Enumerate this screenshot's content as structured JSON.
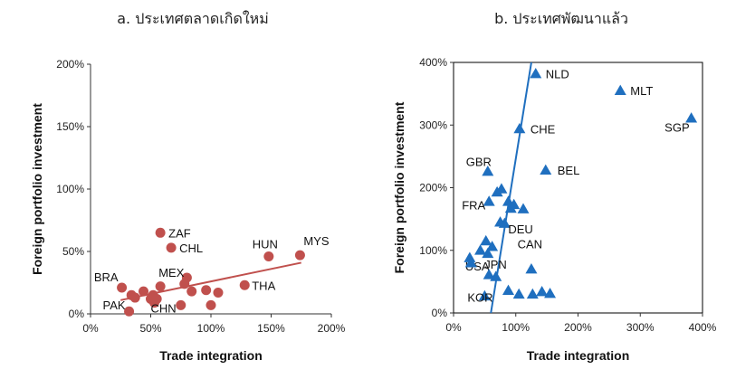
{
  "chart_data": [
    {
      "type": "scatter",
      "title": "a. ประเทศตลาดเกิดใหม่",
      "xlabel": "Trade integration",
      "ylabel": "Foreign portfolio investment",
      "xlim": [
        0,
        200
      ],
      "ylim": [
        0,
        200
      ],
      "xticks": [
        "0%",
        "50%",
        "100%",
        "150%",
        "200%"
      ],
      "yticks": [
        "0%",
        "50%",
        "100%",
        "150%",
        "200%"
      ],
      "marker": "circle",
      "color": "#c0504d",
      "frame": false,
      "points": [
        {
          "x": 58,
          "y": 65,
          "label": "ZAF"
        },
        {
          "x": 67,
          "y": 53,
          "label": "CHL"
        },
        {
          "x": 148,
          "y": 46,
          "label": "HUN"
        },
        {
          "x": 174,
          "y": 47,
          "label": "MYS"
        },
        {
          "x": 26,
          "y": 21,
          "label": "BRA"
        },
        {
          "x": 32,
          "y": 2,
          "label": "PAK"
        },
        {
          "x": 80,
          "y": 29,
          "label": "MEX"
        },
        {
          "x": 53,
          "y": 9,
          "label": "CHN"
        },
        {
          "x": 128,
          "y": 23,
          "label": "THA"
        },
        {
          "x": 34,
          "y": 15,
          "label": ""
        },
        {
          "x": 37,
          "y": 13,
          "label": ""
        },
        {
          "x": 44,
          "y": 18,
          "label": ""
        },
        {
          "x": 50,
          "y": 12,
          "label": ""
        },
        {
          "x": 52,
          "y": 15,
          "label": ""
        },
        {
          "x": 55,
          "y": 12,
          "label": ""
        },
        {
          "x": 58,
          "y": 22,
          "label": ""
        },
        {
          "x": 75,
          "y": 7,
          "label": ""
        },
        {
          "x": 78,
          "y": 24,
          "label": ""
        },
        {
          "x": 84,
          "y": 18,
          "label": ""
        },
        {
          "x": 96,
          "y": 19,
          "label": ""
        },
        {
          "x": 100,
          "y": 7,
          "label": ""
        },
        {
          "x": 106,
          "y": 17,
          "label": ""
        }
      ],
      "trendline": {
        "x": [
          25,
          175
        ],
        "y": [
          11,
          41
        ]
      }
    },
    {
      "type": "scatter",
      "title": "b. ประเทศพัฒนาแล้ว",
      "xlabel": "Trade integration",
      "ylabel": "Foreign portfolio investment",
      "xlim": [
        0,
        400
      ],
      "ylim": [
        0,
        400
      ],
      "xticks": [
        "0%",
        "100%",
        "200%",
        "300%",
        "400%"
      ],
      "yticks": [
        "0%",
        "100%",
        "200%",
        "300%",
        "400%"
      ],
      "marker": "triangle",
      "color": "#1f6fbf",
      "frame": true,
      "points": [
        {
          "x": 132,
          "y": 382,
          "label": "NLD"
        },
        {
          "x": 268,
          "y": 355,
          "label": "MLT"
        },
        {
          "x": 382,
          "y": 311,
          "label": "SGP"
        },
        {
          "x": 106,
          "y": 294,
          "label": "CHE"
        },
        {
          "x": 55,
          "y": 226,
          "label": "GBR"
        },
        {
          "x": 148,
          "y": 228,
          "label": "BEL"
        },
        {
          "x": 57,
          "y": 178,
          "label": "FRA"
        },
        {
          "x": 82,
          "y": 143,
          "label": "DEU"
        },
        {
          "x": 62,
          "y": 106,
          "label": "CAN"
        },
        {
          "x": 26,
          "y": 88,
          "label": "USA"
        },
        {
          "x": 57,
          "y": 61,
          "label": "JPN"
        },
        {
          "x": 50,
          "y": 27,
          "label": "KOR"
        },
        {
          "x": 70,
          "y": 193,
          "label": ""
        },
        {
          "x": 77,
          "y": 198,
          "label": ""
        },
        {
          "x": 88,
          "y": 178,
          "label": ""
        },
        {
          "x": 92,
          "y": 167,
          "label": ""
        },
        {
          "x": 97,
          "y": 173,
          "label": ""
        },
        {
          "x": 112,
          "y": 166,
          "label": ""
        },
        {
          "x": 75,
          "y": 145,
          "label": ""
        },
        {
          "x": 52,
          "y": 115,
          "label": ""
        },
        {
          "x": 43,
          "y": 100,
          "label": ""
        },
        {
          "x": 55,
          "y": 95,
          "label": ""
        },
        {
          "x": 28,
          "y": 80,
          "label": ""
        },
        {
          "x": 68,
          "y": 58,
          "label": ""
        },
        {
          "x": 125,
          "y": 70,
          "label": ""
        },
        {
          "x": 88,
          "y": 36,
          "label": ""
        },
        {
          "x": 105,
          "y": 30,
          "label": ""
        },
        {
          "x": 127,
          "y": 30,
          "label": ""
        },
        {
          "x": 142,
          "y": 34,
          "label": ""
        },
        {
          "x": 155,
          "y": 31,
          "label": ""
        }
      ],
      "trendline": {
        "x": [
          60,
          125
        ],
        "y": 0,
        "y_end": 400
      }
    }
  ]
}
